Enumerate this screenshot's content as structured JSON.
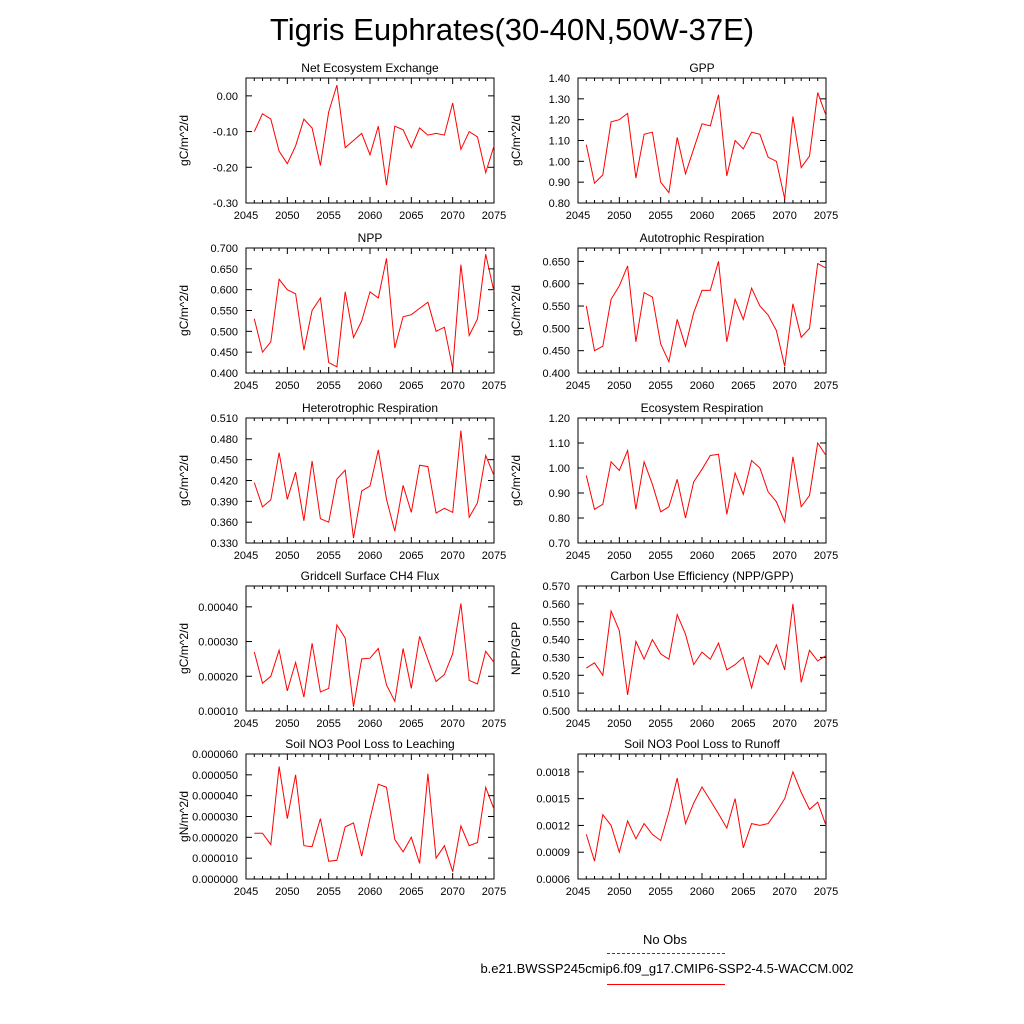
{
  "title": "Tigris Euphrates(30-40N,50W-37E)",
  "legend": {
    "obs_label": "No Obs",
    "obs_color": "#3333cc",
    "model_label": "b.e21.BWSSP245cmip6.f09_g17.CMIP6-SSP2-4.5-WACCM.002",
    "model_color": "#ff0000"
  },
  "chart_data": [
    {
      "type": "line",
      "title": "Net Ecosystem Exchange",
      "xlabel": "",
      "ylabel": "gC/m^2/d",
      "xlim": [
        2045,
        2075
      ],
      "xticks": [
        2045,
        2050,
        2055,
        2060,
        2065,
        2070,
        2075
      ],
      "ylim": [
        -0.3,
        0.05
      ],
      "yticks": [
        "-0.30",
        "-0.20",
        "-0.10",
        "0.00"
      ],
      "yticks_values": [
        -0.3,
        -0.2,
        -0.1,
        0.0
      ],
      "x": [
        2046,
        2047,
        2048,
        2049,
        2050,
        2051,
        2052,
        2053,
        2054,
        2055,
        2056,
        2057,
        2058,
        2059,
        2060,
        2061,
        2062,
        2063,
        2064,
        2065,
        2066,
        2067,
        2068,
        2069,
        2070,
        2071,
        2072,
        2073,
        2074,
        2075
      ],
      "series": [
        {
          "values": [
            -0.1,
            -0.05,
            -0.065,
            -0.155,
            -0.19,
            -0.14,
            -0.065,
            -0.09,
            -0.195,
            -0.045,
            0.03,
            -0.145,
            -0.125,
            -0.105,
            -0.165,
            -0.085,
            -0.25,
            -0.085,
            -0.095,
            -0.145,
            -0.09,
            -0.11,
            -0.105,
            -0.11,
            -0.02,
            -0.15,
            -0.1,
            -0.115,
            -0.215,
            -0.14
          ],
          "color": "#ff0000"
        }
      ]
    },
    {
      "type": "line",
      "title": "GPP",
      "xlabel": "",
      "ylabel": "gC/m^2/d",
      "xlim": [
        2045,
        2075
      ],
      "xticks": [
        2045,
        2050,
        2055,
        2060,
        2065,
        2070,
        2075
      ],
      "ylim": [
        0.8,
        1.4
      ],
      "yticks": [
        "0.80",
        "0.90",
        "1.00",
        "1.10",
        "1.20",
        "1.30",
        "1.40"
      ],
      "yticks_values": [
        0.8,
        0.9,
        1.0,
        1.1,
        1.2,
        1.3,
        1.4
      ],
      "x": [
        2046,
        2047,
        2048,
        2049,
        2050,
        2051,
        2052,
        2053,
        2054,
        2055,
        2056,
        2057,
        2058,
        2059,
        2060,
        2061,
        2062,
        2063,
        2064,
        2065,
        2066,
        2067,
        2068,
        2069,
        2070,
        2071,
        2072,
        2073,
        2074,
        2075
      ],
      "series": [
        {
          "values": [
            1.08,
            0.895,
            0.935,
            1.19,
            1.2,
            1.23,
            0.92,
            1.13,
            1.14,
            0.9,
            0.85,
            1.115,
            0.94,
            1.06,
            1.18,
            1.17,
            1.32,
            0.93,
            1.1,
            1.06,
            1.14,
            1.13,
            1.02,
            1.0,
            0.82,
            1.215,
            0.97,
            1.025,
            1.33,
            1.22
          ],
          "color": "#ff0000"
        }
      ]
    },
    {
      "type": "line",
      "title": "NPP",
      "xlabel": "",
      "ylabel": "gC/m^2/d",
      "xlim": [
        2045,
        2075
      ],
      "xticks": [
        2045,
        2050,
        2055,
        2060,
        2065,
        2070,
        2075
      ],
      "ylim": [
        0.4,
        0.7
      ],
      "yticks": [
        "0.400",
        "0.450",
        "0.500",
        "0.550",
        "0.600",
        "0.650",
        "0.700"
      ],
      "yticks_values": [
        0.4,
        0.45,
        0.5,
        0.55,
        0.6,
        0.65,
        0.7
      ],
      "x": [
        2046,
        2047,
        2048,
        2049,
        2050,
        2051,
        2052,
        2053,
        2054,
        2055,
        2056,
        2057,
        2058,
        2059,
        2060,
        2061,
        2062,
        2063,
        2064,
        2065,
        2066,
        2067,
        2068,
        2069,
        2070,
        2071,
        2072,
        2073,
        2074,
        2075
      ],
      "series": [
        {
          "values": [
            0.53,
            0.45,
            0.475,
            0.625,
            0.6,
            0.59,
            0.455,
            0.55,
            0.58,
            0.425,
            0.415,
            0.595,
            0.485,
            0.525,
            0.595,
            0.58,
            0.675,
            0.46,
            0.535,
            0.54,
            0.555,
            0.57,
            0.5,
            0.51,
            0.41,
            0.66,
            0.49,
            0.53,
            0.685,
            0.595
          ],
          "color": "#ff0000"
        }
      ]
    },
    {
      "type": "line",
      "title": "Autotrophic Respiration",
      "xlabel": "",
      "ylabel": "gC/m^2/d",
      "xlim": [
        2045,
        2075
      ],
      "xticks": [
        2045,
        2050,
        2055,
        2060,
        2065,
        2070,
        2075
      ],
      "ylim": [
        0.4,
        0.68
      ],
      "yticks": [
        "0.400",
        "0.450",
        "0.500",
        "0.550",
        "0.600",
        "0.650"
      ],
      "yticks_values": [
        0.4,
        0.45,
        0.5,
        0.55,
        0.6,
        0.65
      ],
      "x": [
        2046,
        2047,
        2048,
        2049,
        2050,
        2051,
        2052,
        2053,
        2054,
        2055,
        2056,
        2057,
        2058,
        2059,
        2060,
        2061,
        2062,
        2063,
        2064,
        2065,
        2066,
        2067,
        2068,
        2069,
        2070,
        2071,
        2072,
        2073,
        2074,
        2075
      ],
      "series": [
        {
          "values": [
            0.55,
            0.45,
            0.46,
            0.565,
            0.595,
            0.64,
            0.47,
            0.58,
            0.57,
            0.465,
            0.425,
            0.52,
            0.46,
            0.535,
            0.585,
            0.585,
            0.65,
            0.47,
            0.565,
            0.52,
            0.59,
            0.55,
            0.53,
            0.495,
            0.415,
            0.555,
            0.48,
            0.5,
            0.645,
            0.635
          ],
          "color": "#ff0000"
        }
      ]
    },
    {
      "type": "line",
      "title": "Heterotrophic Respiration",
      "xlabel": "",
      "ylabel": "gC/m^2/d",
      "xlim": [
        2045,
        2075
      ],
      "xticks": [
        2045,
        2050,
        2055,
        2060,
        2065,
        2070,
        2075
      ],
      "ylim": [
        0.33,
        0.51
      ],
      "yticks": [
        "0.330",
        "0.360",
        "0.390",
        "0.420",
        "0.450",
        "0.480",
        "0.510"
      ],
      "yticks_values": [
        0.33,
        0.36,
        0.39,
        0.42,
        0.45,
        0.48,
        0.51
      ],
      "x": [
        2046,
        2047,
        2048,
        2049,
        2050,
        2051,
        2052,
        2053,
        2054,
        2055,
        2056,
        2057,
        2058,
        2059,
        2060,
        2061,
        2062,
        2063,
        2064,
        2065,
        2066,
        2067,
        2068,
        2069,
        2070,
        2071,
        2072,
        2073,
        2074,
        2075
      ],
      "series": [
        {
          "values": [
            0.417,
            0.382,
            0.392,
            0.46,
            0.393,
            0.432,
            0.362,
            0.448,
            0.365,
            0.36,
            0.422,
            0.435,
            0.337,
            0.405,
            0.412,
            0.464,
            0.393,
            0.347,
            0.413,
            0.374,
            0.442,
            0.44,
            0.373,
            0.38,
            0.374,
            0.492,
            0.367,
            0.388,
            0.456,
            0.427
          ],
          "color": "#ff0000"
        }
      ]
    },
    {
      "type": "line",
      "title": "Ecosystem Respiration",
      "xlabel": "",
      "ylabel": "gC/m^2/d",
      "xlim": [
        2045,
        2075
      ],
      "xticks": [
        2045,
        2050,
        2055,
        2060,
        2065,
        2070,
        2075
      ],
      "ylim": [
        0.7,
        1.2
      ],
      "yticks": [
        "0.70",
        "0.80",
        "0.90",
        "1.00",
        "1.10",
        "1.20"
      ],
      "yticks_values": [
        0.7,
        0.8,
        0.9,
        1.0,
        1.1,
        1.2
      ],
      "x": [
        2046,
        2047,
        2048,
        2049,
        2050,
        2051,
        2052,
        2053,
        2054,
        2055,
        2056,
        2057,
        2058,
        2059,
        2060,
        2061,
        2062,
        2063,
        2064,
        2065,
        2066,
        2067,
        2068,
        2069,
        2070,
        2071,
        2072,
        2073,
        2074,
        2075
      ],
      "series": [
        {
          "values": [
            0.97,
            0.835,
            0.855,
            1.025,
            0.99,
            1.07,
            0.835,
            1.025,
            0.935,
            0.825,
            0.845,
            0.955,
            0.8,
            0.945,
            0.995,
            1.05,
            1.055,
            0.815,
            0.98,
            0.895,
            1.03,
            1.0,
            0.905,
            0.865,
            0.785,
            1.045,
            0.845,
            0.89,
            1.1,
            1.05
          ],
          "color": "#ff0000"
        }
      ]
    },
    {
      "type": "line",
      "title": "Gridcell Surface CH4 Flux",
      "xlabel": "",
      "ylabel": "gC/m^2/d",
      "xlim": [
        2045,
        2075
      ],
      "xticks": [
        2045,
        2050,
        2055,
        2060,
        2065,
        2070,
        2075
      ],
      "ylim": [
        0.0001,
        0.00046
      ],
      "yticks": [
        "0.00010",
        "0.00020",
        "0.00030",
        "0.00040"
      ],
      "yticks_values": [
        0.0001,
        0.0002,
        0.0003,
        0.0004
      ],
      "x": [
        2046,
        2047,
        2048,
        2049,
        2050,
        2051,
        2052,
        2053,
        2054,
        2055,
        2056,
        2057,
        2058,
        2059,
        2060,
        2061,
        2062,
        2063,
        2064,
        2065,
        2066,
        2067,
        2068,
        2069,
        2070,
        2071,
        2072,
        2073,
        2074,
        2075
      ],
      "series": [
        {
          "values": [
            0.00027,
            0.00018,
            0.0002,
            0.000275,
            0.000158,
            0.00024,
            0.00014,
            0.000295,
            0.000155,
            0.000165,
            0.000348,
            0.00031,
            0.000112,
            0.00025,
            0.000252,
            0.00028,
            0.000175,
            0.000128,
            0.00028,
            0.000165,
            0.000315,
            0.000248,
            0.000185,
            0.000205,
            0.000265,
            0.00041,
            0.000188,
            0.000178,
            0.000272,
            0.00024
          ],
          "color": "#ff0000"
        }
      ]
    },
    {
      "type": "line",
      "title": "Carbon Use Efficiency (NPP/GPP)",
      "xlabel": "",
      "ylabel": "NPP/GPP",
      "xlim": [
        2045,
        2075
      ],
      "xticks": [
        2045,
        2050,
        2055,
        2060,
        2065,
        2070,
        2075
      ],
      "ylim": [
        0.5,
        0.57
      ],
      "yticks": [
        "0.500",
        "0.510",
        "0.520",
        "0.530",
        "0.540",
        "0.550",
        "0.560",
        "0.570"
      ],
      "yticks_values": [
        0.5,
        0.51,
        0.52,
        0.53,
        0.54,
        0.55,
        0.56,
        0.57
      ],
      "x": [
        2046,
        2047,
        2048,
        2049,
        2050,
        2051,
        2052,
        2053,
        2054,
        2055,
        2056,
        2057,
        2058,
        2059,
        2060,
        2061,
        2062,
        2063,
        2064,
        2065,
        2066,
        2067,
        2068,
        2069,
        2070,
        2071,
        2072,
        2073,
        2074,
        2075
      ],
      "series": [
        {
          "values": [
            0.524,
            0.527,
            0.52,
            0.556,
            0.545,
            0.509,
            0.539,
            0.529,
            0.54,
            0.532,
            0.529,
            0.554,
            0.543,
            0.526,
            0.533,
            0.529,
            0.538,
            0.523,
            0.526,
            0.53,
            0.513,
            0.531,
            0.526,
            0.537,
            0.523,
            0.56,
            0.516,
            0.534,
            0.528,
            0.531
          ],
          "color": "#ff0000"
        }
      ]
    },
    {
      "type": "line",
      "title": "Soil NO3 Pool Loss to Leaching",
      "xlabel": "",
      "ylabel": "gN/m^2/d",
      "xlim": [
        2045,
        2075
      ],
      "xticks": [
        2045,
        2050,
        2055,
        2060,
        2065,
        2070,
        2075
      ],
      "ylim": [
        0.0,
        6e-05
      ],
      "yticks": [
        "0.000000",
        "0.000010",
        "0.000020",
        "0.000030",
        "0.000040",
        "0.000050",
        "0.000060"
      ],
      "yticks_values": [
        0.0,
        1e-05,
        2e-05,
        3e-05,
        4e-05,
        5e-05,
        6e-05
      ],
      "x": [
        2046,
        2047,
        2048,
        2049,
        2050,
        2051,
        2052,
        2053,
        2054,
        2055,
        2056,
        2057,
        2058,
        2059,
        2060,
        2061,
        2062,
        2063,
        2064,
        2065,
        2066,
        2067,
        2068,
        2069,
        2070,
        2071,
        2072,
        2073,
        2074,
        2075
      ],
      "series": [
        {
          "values": [
            2.2e-05,
            2.2e-05,
            1.65e-05,
            5.4e-05,
            2.9e-05,
            5e-05,
            1.6e-05,
            1.55e-05,
            2.9e-05,
            8.5e-06,
            9e-06,
            2.5e-05,
            2.7e-05,
            1.1e-05,
            2.9e-05,
            4.55e-05,
            4.4e-05,
            1.9e-05,
            1.3e-05,
            2e-05,
            7.5e-06,
            5.05e-05,
            1e-05,
            1.6e-05,
            3.5e-06,
            2.55e-05,
            1.6e-05,
            1.75e-05,
            4.4e-05,
            3.35e-05
          ],
          "color": "#ff0000"
        }
      ]
    },
    {
      "type": "line",
      "title": "Soil NO3 Pool Loss to Runoff",
      "xlabel": "",
      "ylabel": "",
      "xlim": [
        2045,
        2075
      ],
      "xticks": [
        2045,
        2050,
        2055,
        2060,
        2065,
        2070,
        2075
      ],
      "ylim": [
        0.0006,
        0.002
      ],
      "yticks": [
        "0.0006",
        "0.0009",
        "0.0012",
        "0.0015",
        "0.0018"
      ],
      "yticks_values": [
        0.0006,
        0.0009,
        0.0012,
        0.0015,
        0.0018
      ],
      "x": [
        2046,
        2047,
        2048,
        2049,
        2050,
        2051,
        2052,
        2053,
        2054,
        2055,
        2056,
        2057,
        2058,
        2059,
        2060,
        2061,
        2062,
        2063,
        2064,
        2065,
        2066,
        2067,
        2068,
        2069,
        2070,
        2071,
        2072,
        2073,
        2074,
        2075
      ],
      "series": [
        {
          "values": [
            0.0011,
            0.0008,
            0.00132,
            0.0012,
            0.0009,
            0.00125,
            0.00105,
            0.00122,
            0.0011,
            0.00103,
            0.00135,
            0.00173,
            0.00122,
            0.00145,
            0.00163,
            0.00148,
            0.00133,
            0.00117,
            0.0015,
            0.00095,
            0.00122,
            0.0012,
            0.00122,
            0.00135,
            0.0015,
            0.0018,
            0.00157,
            0.00138,
            0.00146,
            0.0012
          ],
          "color": "#ff0000"
        }
      ]
    }
  ]
}
